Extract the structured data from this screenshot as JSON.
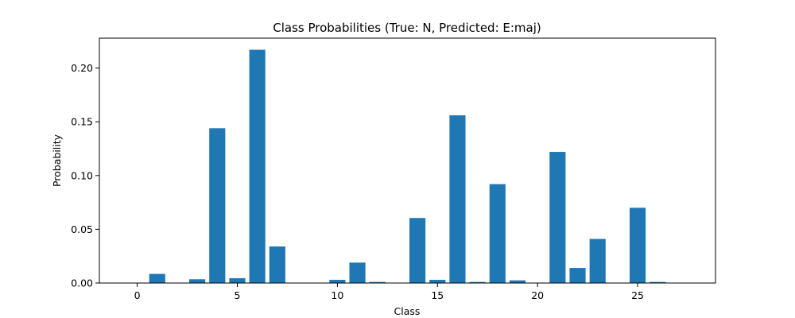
{
  "chart_data": {
    "type": "bar",
    "title": "Class Probabilities (True: N, Predicted: E:maj)",
    "xlabel": "Class",
    "ylabel": "Probability",
    "x": [
      0,
      1,
      2,
      3,
      4,
      5,
      6,
      7,
      8,
      9,
      10,
      11,
      12,
      13,
      14,
      15,
      16,
      17,
      18,
      19,
      20,
      21,
      22,
      23,
      24,
      25,
      26,
      27
    ],
    "values": [
      0.0,
      0.0085,
      0.0,
      0.0035,
      0.144,
      0.0045,
      0.217,
      0.034,
      0.0,
      0.0,
      0.003,
      0.019,
      0.001,
      0.0,
      0.0605,
      0.003,
      0.156,
      0.001,
      0.092,
      0.0025,
      0.0,
      0.122,
      0.014,
      0.041,
      0.0,
      0.07,
      0.001,
      0.0
    ],
    "xlim": [
      -1.89,
      28.89
    ],
    "ylim": [
      0,
      0.2278
    ],
    "xticks": [
      0,
      5,
      10,
      15,
      20,
      25
    ],
    "xtick_labels": [
      "0",
      "5",
      "10",
      "15",
      "20",
      "25"
    ],
    "yticks": [
      0.0,
      0.05,
      0.1,
      0.15,
      0.2
    ],
    "ytick_labels": [
      "0.00",
      "0.05",
      "0.10",
      "0.15",
      "0.20"
    ],
    "bar_color": "#1f77b4",
    "grid": false,
    "legend": "none"
  }
}
